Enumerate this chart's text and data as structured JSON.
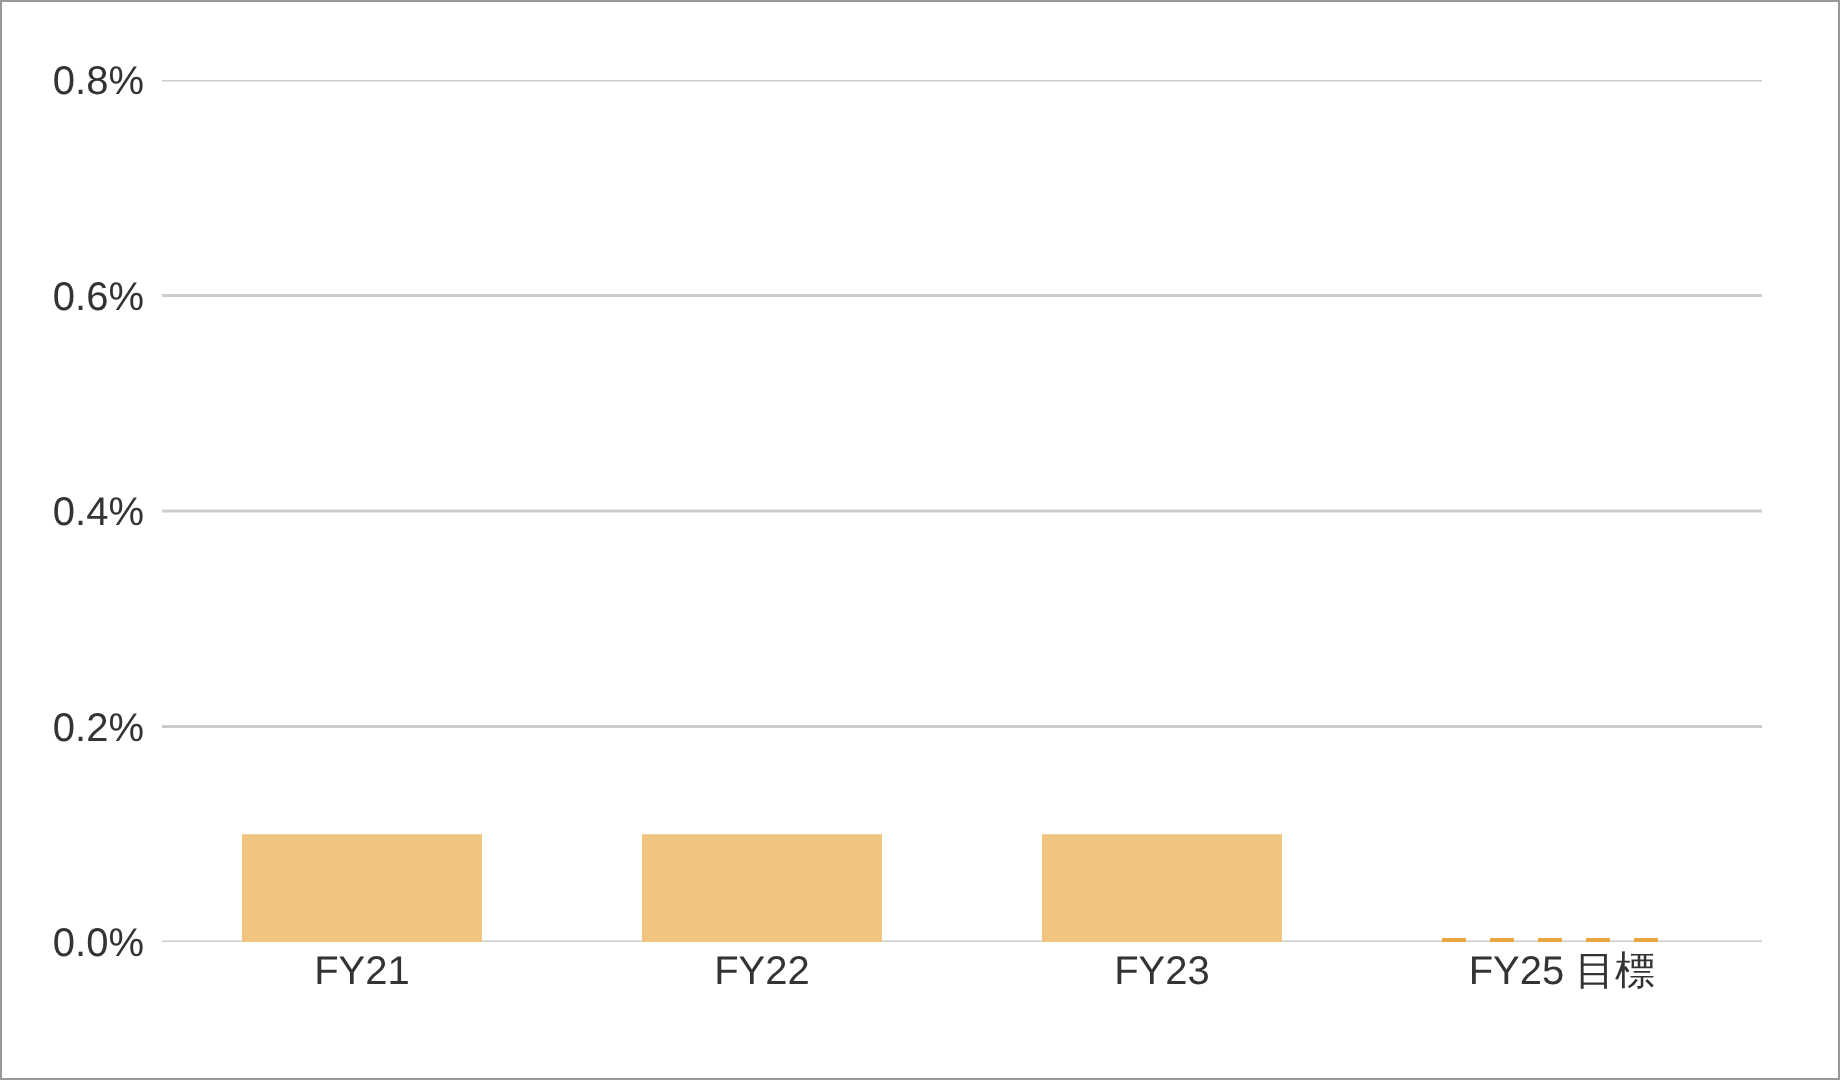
{
  "chart_data": {
    "type": "bar",
    "categories": [
      "FY21",
      "FY22",
      "FY23",
      "FY25 目標"
    ],
    "series": [
      {
        "color": "#f0c580",
        "values": [
          0.1,
          0.1,
          0.1,
          null
        ]
      },
      {
        "color": "#e8a540",
        "values": [
          null,
          null,
          null,
          0
        ],
        "line_style": "dashed"
      }
    ],
    "ylim": [
      0,
      0.8
    ],
    "yticks": [
      {
        "value": 0,
        "label": "0.0%"
      },
      {
        "value": 0.2,
        "label": "0.2%"
      },
      {
        "value": 0.4,
        "label": "0.4%"
      },
      {
        "value": 0.6,
        "label": "0.6%"
      },
      {
        "value": 0.8,
        "label": "0.8%"
      }
    ],
    "grid": "y"
  }
}
